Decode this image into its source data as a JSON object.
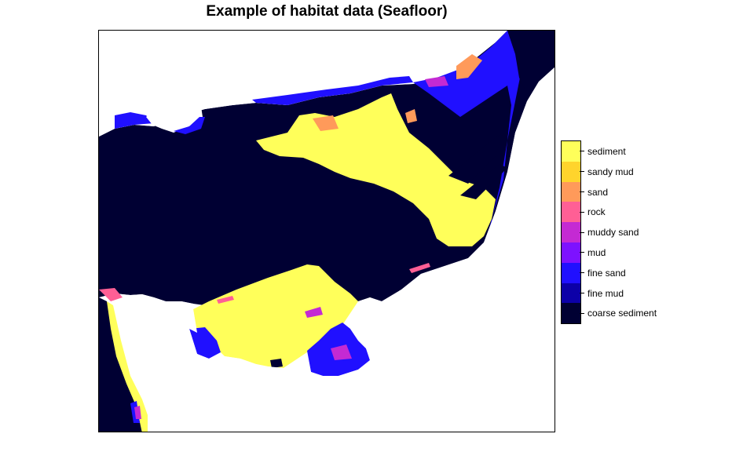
{
  "title": "Example of habitat data (Seafloor)",
  "legend": {
    "items": [
      {
        "label": "sediment",
        "color": "#ffff5a"
      },
      {
        "label": "sandy mud",
        "color": "#ffd42c"
      },
      {
        "label": "sand",
        "color": "#ff9a5a"
      },
      {
        "label": "rock",
        "color": "#ff5f95"
      },
      {
        "label": "muddy sand",
        "color": "#c42ad3"
      },
      {
        "label": "mud",
        "color": "#7d12ff"
      },
      {
        "label": "fine sand",
        "color": "#2010ff"
      },
      {
        "label": "fine mud",
        "color": "#0c00a8"
      },
      {
        "label": "coarse sediment",
        "color": "#000033"
      }
    ]
  }
}
